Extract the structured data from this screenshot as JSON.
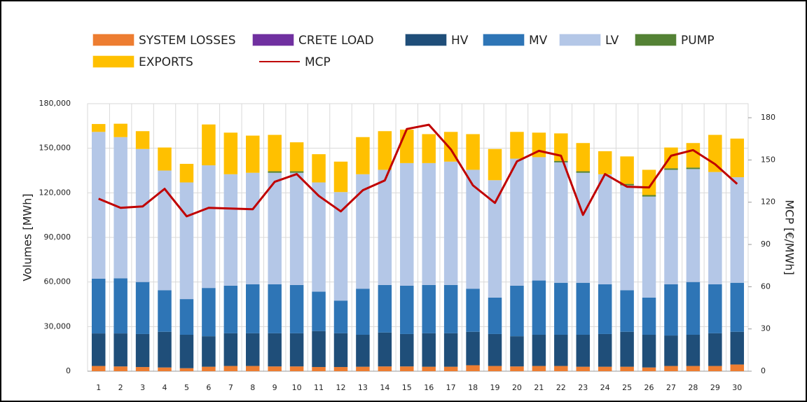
{
  "chart_data": {
    "type": "bar",
    "stacked": true,
    "y_label": "Volumes [MWh]",
    "y2_label": "MCP [€/MWh]",
    "categories": [
      "1",
      "2",
      "3",
      "4",
      "5",
      "6",
      "7",
      "8",
      "9",
      "10",
      "11",
      "12",
      "13",
      "14",
      "15",
      "16",
      "17",
      "18",
      "19",
      "20",
      "21",
      "22",
      "23",
      "24",
      "25",
      "26",
      "27",
      "28",
      "29",
      "30"
    ],
    "series": [
      {
        "name": "SYSTEM LOSSES",
        "color": "#ed7d31",
        "values": [
          3500,
          3200,
          2800,
          2500,
          2000,
          3000,
          3500,
          3500,
          3200,
          3200,
          2800,
          2800,
          3000,
          3200,
          3200,
          3000,
          3000,
          4000,
          3500,
          3200,
          3500,
          3500,
          3000,
          3000,
          3000,
          2500,
          3500,
          3500,
          3500,
          4500
        ]
      },
      {
        "name": "CRETE LOAD",
        "color": "#7030a0",
        "values": [
          0,
          0,
          0,
          0,
          0,
          0,
          0,
          0,
          0,
          0,
          0,
          0,
          0,
          0,
          0,
          0,
          0,
          0,
          0,
          0,
          0,
          0,
          0,
          0,
          0,
          0,
          0,
          0,
          0,
          0
        ]
      },
      {
        "name": "HV",
        "color": "#1f4e79",
        "values": [
          21900,
          22200,
          22200,
          24000,
          22500,
          20500,
          22000,
          22000,
          22300,
          22300,
          24200,
          22700,
          21500,
          22800,
          21800,
          22500,
          22500,
          22500,
          21500,
          20300,
          21000,
          21000,
          21500,
          22000,
          23500,
          22000,
          20500,
          21000,
          22000,
          22000
        ]
      },
      {
        "name": "MV",
        "color": "#2e75b6",
        "values": [
          36800,
          37100,
          35000,
          28000,
          24000,
          32500,
          32000,
          33000,
          33000,
          32500,
          26500,
          22000,
          31000,
          32000,
          32500,
          32500,
          32500,
          29000,
          24500,
          34000,
          36500,
          35000,
          35000,
          33500,
          28000,
          25000,
          34500,
          35500,
          33000,
          33000
        ]
      },
      {
        "name": "LV",
        "color": "#b4c7e7",
        "values": [
          98800,
          95000,
          89500,
          80500,
          78500,
          82500,
          75000,
          75000,
          75000,
          75500,
          73500,
          73000,
          77000,
          77500,
          82500,
          82000,
          83000,
          80000,
          79000,
          85500,
          83000,
          81000,
          74000,
          74000,
          70500,
          68000,
          77000,
          76000,
          75500,
          71000
        ]
      },
      {
        "name": "PUMP",
        "color": "#548235",
        "values": [
          0,
          0,
          0,
          0,
          0,
          0,
          0,
          0,
          1000,
          1000,
          0,
          0,
          0,
          0,
          0,
          0,
          0,
          0,
          0,
          0,
          0,
          1000,
          1000,
          0,
          1000,
          1000,
          1000,
          1000,
          0,
          0
        ]
      },
      {
        "name": "EXPORTS",
        "color": "#ffc000",
        "values": [
          5300,
          9000,
          12000,
          15500,
          12500,
          27500,
          28000,
          25000,
          24500,
          19500,
          19000,
          20500,
          25000,
          26000,
          22500,
          19500,
          20000,
          24000,
          21000,
          18000,
          16500,
          18500,
          19000,
          15500,
          18500,
          17000,
          14000,
          16500,
          25000,
          26000
        ]
      },
      {
        "name": "MCP",
        "color": "#c00000",
        "type": "line",
        "axis": "y2",
        "values": [
          122.5,
          116,
          117,
          129.5,
          110,
          116,
          115.5,
          115,
          134.5,
          140,
          124.5,
          113.5,
          128.5,
          135.5,
          172,
          175,
          157.5,
          132,
          119.5,
          149,
          156.5,
          153,
          111,
          140,
          131,
          130.5,
          153,
          157,
          147,
          133
        ]
      }
    ],
    "ylim": [
      0,
      180000
    ],
    "yticks": [
      0,
      {
        "value": 30000,
        "label": "30,000"
      },
      {
        "value": 60000,
        "label": "60,000"
      },
      {
        "value": 90000,
        "label": "90,000"
      },
      {
        "value": 120000,
        "label": "120,000"
      },
      {
        "value": 150000,
        "label": "150,000"
      },
      {
        "value": 180000,
        "label": "180,000"
      }
    ],
    "y2lim": [
      0,
      190
    ],
    "y2ticks": [
      0,
      30,
      60,
      90,
      120,
      150,
      180
    ],
    "grid": true
  }
}
